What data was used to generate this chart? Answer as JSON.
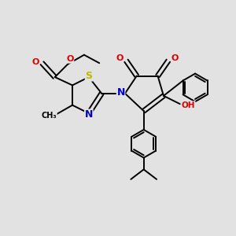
{
  "background_color": "#e2e2e2",
  "figsize": [
    3.0,
    3.0
  ],
  "dpi": 100,
  "bond_color": "#000000",
  "bond_lw": 1.4,
  "atom_colors": {
    "N": "#0000cc",
    "O": "#dd0000",
    "S": "#bbbb00",
    "C": "#000000",
    "H": "#555555"
  },
  "font_size": 7.5
}
